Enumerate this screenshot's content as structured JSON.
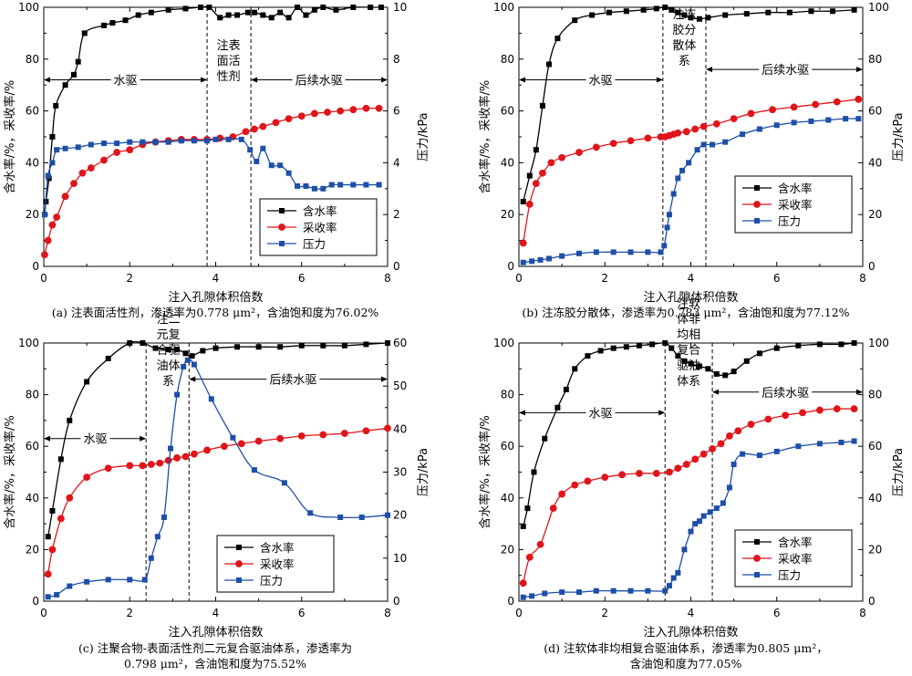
{
  "colors": {
    "water_cut": "#000000",
    "recovery": "#e0141a",
    "pressure": "#1d4fa8"
  },
  "chart_data": [
    {
      "type": "line",
      "panel": "a",
      "caption": [
        "(a) 注表面活性剂，渗透率为0.778 μm²，含油饱和度为76.02%"
      ],
      "xlabel": "注入孔隙体积倍数",
      "ylabel_left": "含水率/%，采收率/%",
      "ylabel_right": "压力/kPa",
      "xlim": [
        0,
        8
      ],
      "ylim_left": [
        0,
        100
      ],
      "ylim_right": [
        0,
        10
      ],
      "xticks": [
        "0",
        "2",
        "4",
        "6",
        "8"
      ],
      "yticks_left": [
        "0",
        "20",
        "40",
        "60",
        "80",
        "100"
      ],
      "yticks_right": [
        "0",
        "2",
        "4",
        "6",
        "8",
        "10"
      ],
      "legend": [
        "含水率",
        "采收率",
        "压力"
      ],
      "legend_position": "bottom-right",
      "phase_lines": [
        3.8,
        4.82
      ],
      "annotations": [
        {
          "text": [
            "水驱"
          ],
          "x": 1.9,
          "y": 72
        },
        {
          "text": [
            "注表",
            "面活",
            "性剂"
          ],
          "x": 4.3,
          "y": 76
        },
        {
          "text": [
            "后续水驱"
          ],
          "x": 6.4,
          "y": 72
        }
      ],
      "series": [
        {
          "name": "含水率",
          "axis": "left",
          "marker": "square",
          "x": [
            0.02,
            0.05,
            0.12,
            0.2,
            0.28,
            0.5,
            0.7,
            0.8,
            0.95,
            1.4,
            1.6,
            1.9,
            2.2,
            2.5,
            2.9,
            3.3,
            3.65,
            3.85,
            4.1,
            4.3,
            4.5,
            4.75,
            4.9,
            5.1,
            5.3,
            5.5,
            5.7,
            5.9,
            6.1,
            6.3,
            6.5,
            6.8,
            7.2,
            7.6,
            7.85
          ],
          "y": [
            20,
            25,
            34,
            50,
            62,
            70,
            74,
            79,
            90,
            93,
            94,
            95,
            97,
            98,
            99,
            99.5,
            100,
            100,
            96,
            97,
            97,
            98,
            98,
            97,
            96,
            98,
            96,
            100,
            97,
            99,
            100,
            99,
            100,
            100,
            100
          ]
        },
        {
          "name": "采收率",
          "axis": "left",
          "marker": "circle",
          "x": [
            0.02,
            0.1,
            0.2,
            0.3,
            0.5,
            0.7,
            0.9,
            1.1,
            1.4,
            1.7,
            2.0,
            2.3,
            2.6,
            2.9,
            3.2,
            3.5,
            3.8,
            4.1,
            4.4,
            4.7,
            4.9,
            5.1,
            5.4,
            5.7,
            6.0,
            6.3,
            6.6,
            6.9,
            7.2,
            7.5,
            7.8
          ],
          "y": [
            4.5,
            10,
            16,
            19,
            27,
            32,
            36,
            38,
            41,
            44,
            45,
            47,
            48,
            48.5,
            49,
            49,
            49,
            49.5,
            50,
            52,
            53,
            54,
            55.5,
            57,
            58,
            59,
            59.5,
            60,
            60.5,
            61,
            61
          ]
        },
        {
          "name": "压力",
          "axis": "right",
          "marker": "square",
          "x": [
            0.02,
            0.1,
            0.2,
            0.3,
            0.5,
            0.8,
            1.1,
            1.4,
            1.7,
            2.0,
            2.3,
            2.6,
            2.9,
            3.2,
            3.5,
            3.8,
            4.0,
            4.3,
            4.6,
            4.8,
            4.95,
            5.1,
            5.3,
            5.5,
            5.7,
            5.9,
            6.1,
            6.3,
            6.5,
            6.7,
            6.9,
            7.2,
            7.5,
            7.8
          ],
          "y": [
            2.0,
            3.5,
            4.0,
            4.5,
            4.55,
            4.6,
            4.7,
            4.75,
            4.75,
            4.8,
            4.8,
            4.8,
            4.8,
            4.85,
            4.85,
            4.85,
            4.9,
            4.9,
            4.9,
            4.5,
            4.05,
            4.55,
            3.9,
            3.9,
            3.6,
            3.1,
            3.1,
            3.0,
            3.0,
            3.15,
            3.15,
            3.15,
            3.15,
            3.15
          ]
        }
      ]
    },
    {
      "type": "line",
      "panel": "b",
      "caption": [
        "(b) 注冻胶分散体，渗透率为0.783 μm²，含油饱和度为77.12%"
      ],
      "xlabel": "注入孔隙体积倍数",
      "ylabel_left": "含水率/%，采收率/%",
      "ylabel_right": "压力/kPa",
      "xlim": [
        0,
        8
      ],
      "ylim_left": [
        0,
        100
      ],
      "ylim_right": [
        0,
        100
      ],
      "xticks": [
        "0",
        "2",
        "4",
        "6",
        "8"
      ],
      "yticks_left": [
        "0",
        "20",
        "40",
        "60",
        "80",
        "100"
      ],
      "yticks_right": [
        "0",
        "20",
        "40",
        "60",
        "80",
        "100"
      ],
      "legend": [
        "含水率",
        "采收率",
        "压力"
      ],
      "legend_position": "bottom-right",
      "phase_lines": [
        3.35,
        4.35
      ],
      "annotations": [
        {
          "text": [
            "水驱"
          ],
          "x": 1.9,
          "y": 72
        },
        {
          "text": [
            "注冻",
            "胶分",
            "散体",
            "系"
          ],
          "x": 3.85,
          "y": 82
        },
        {
          "text": [
            "后续水驱"
          ],
          "x": 6.2,
          "y": 76
        }
      ],
      "series": [
        {
          "name": "含水率",
          "axis": "left",
          "marker": "square",
          "x": [
            0.1,
            0.25,
            0.4,
            0.55,
            0.7,
            0.9,
            1.3,
            1.7,
            2.1,
            2.5,
            2.9,
            3.2,
            3.4,
            3.55,
            3.7,
            3.85,
            4.0,
            4.2,
            4.4,
            4.8,
            5.3,
            5.8,
            6.3,
            6.8,
            7.3,
            7.8
          ],
          "y": [
            25,
            35,
            45,
            62,
            78,
            88,
            95,
            97,
            98,
            98.5,
            99,
            99.5,
            100,
            99,
            98,
            97,
            96,
            95.5,
            96,
            97,
            97.5,
            98,
            98,
            98.5,
            98.5,
            99
          ]
        },
        {
          "name": "采收率",
          "axis": "left",
          "marker": "circle",
          "x": [
            0.1,
            0.25,
            0.4,
            0.55,
            0.75,
            1.0,
            1.4,
            1.8,
            2.2,
            2.6,
            3.0,
            3.3,
            3.4,
            3.5,
            3.6,
            3.7,
            3.9,
            4.1,
            4.3,
            4.6,
            5.0,
            5.4,
            5.9,
            6.4,
            6.9,
            7.4,
            7.9
          ],
          "y": [
            9,
            24,
            32,
            36,
            40,
            42,
            44,
            46,
            47.5,
            48.5,
            49.5,
            50,
            50,
            50.5,
            51,
            51.5,
            52,
            53,
            54,
            55,
            57,
            59,
            60.5,
            61.5,
            62.5,
            63.5,
            64.5
          ]
        },
        {
          "name": "压力",
          "axis": "right",
          "marker": "square",
          "x": [
            0.1,
            0.3,
            0.5,
            0.7,
            1.0,
            1.4,
            1.8,
            2.2,
            2.6,
            3.0,
            3.3,
            3.38,
            3.45,
            3.5,
            3.6,
            3.7,
            3.8,
            3.95,
            4.15,
            4.3,
            4.5,
            4.8,
            5.2,
            5.6,
            6.0,
            6.4,
            6.8,
            7.2,
            7.6,
            7.9
          ],
          "y": [
            1.5,
            2,
            2.5,
            3,
            4,
            5,
            5.5,
            5.5,
            5.5,
            5.5,
            5.5,
            8,
            15,
            20,
            28,
            34,
            37,
            40,
            45,
            47,
            47,
            48,
            51,
            53,
            54.5,
            55.5,
            56,
            56.5,
            57,
            57
          ]
        }
      ]
    },
    {
      "type": "line",
      "panel": "c",
      "caption": [
        "(c) 注聚合物-表面活性剂二元复合驱油体系，渗透率为",
        "0.798 μm²，含油饱和度为75.52%"
      ],
      "xlabel": "注入孔隙体积倍数",
      "ylabel_left": "含水率/%，采收率/%",
      "ylabel_right": "压力/kPa",
      "xlim": [
        0,
        8
      ],
      "ylim_left": [
        0,
        100
      ],
      "ylim_right": [
        0,
        60
      ],
      "xticks": [
        "0",
        "2",
        "4",
        "6",
        "8"
      ],
      "yticks_left": [
        "0",
        "20",
        "40",
        "60",
        "80",
        "100"
      ],
      "yticks_right": [
        "0",
        "10",
        "20",
        "30",
        "40",
        "50",
        "60"
      ],
      "legend": [
        "含水率",
        "采收率",
        "压力"
      ],
      "legend_position": "bottom-center",
      "phase_lines": [
        2.38,
        3.38
      ],
      "annotations": [
        {
          "text": [
            "水驱"
          ],
          "x": 1.2,
          "y": 63
        },
        {
          "text": [
            "注二",
            "元复",
            "合驱",
            "油体",
            "系"
          ],
          "x": 2.9,
          "y": 88
        },
        {
          "text": [
            "后续水驱"
          ],
          "x": 5.8,
          "y": 86
        }
      ],
      "series": [
        {
          "name": "含水率",
          "axis": "left",
          "marker": "square",
          "x": [
            0.1,
            0.2,
            0.4,
            0.6,
            1.0,
            1.5,
            2.0,
            2.3,
            2.6,
            2.9,
            3.1,
            3.3,
            3.45,
            3.7,
            4.0,
            4.5,
            5.0,
            5.5,
            6.0,
            6.5,
            7.0,
            7.5,
            8.0
          ],
          "y": [
            25,
            35,
            55,
            70,
            85,
            94,
            100,
            100,
            98,
            97.5,
            97.5,
            96,
            95,
            97,
            98,
            98.5,
            98.5,
            98.5,
            99,
            99,
            99,
            99.5,
            100
          ]
        },
        {
          "name": "采收率",
          "axis": "left",
          "marker": "circle",
          "x": [
            0.1,
            0.2,
            0.4,
            0.6,
            1.0,
            1.5,
            2.0,
            2.3,
            2.5,
            2.7,
            2.9,
            3.1,
            3.3,
            3.5,
            3.8,
            4.2,
            4.6,
            5.0,
            5.5,
            6.0,
            6.5,
            7.0,
            7.5,
            8.0
          ],
          "y": [
            10.5,
            20,
            32,
            40,
            48,
            51.5,
            52.5,
            52.5,
            53,
            53.5,
            54.5,
            55.5,
            56,
            57,
            58.5,
            60,
            61,
            62,
            63,
            64,
            64.5,
            65,
            66,
            67
          ]
        },
        {
          "name": "压力",
          "axis": "right",
          "marker": "square",
          "x": [
            0.1,
            0.3,
            0.6,
            1.0,
            1.5,
            2.0,
            2.35,
            2.5,
            2.65,
            2.8,
            2.95,
            3.1,
            3.25,
            3.35,
            3.5,
            3.9,
            4.4,
            4.9,
            5.6,
            6.2,
            6.9,
            7.4,
            8.0
          ],
          "y": [
            1,
            1.5,
            3.5,
            4.5,
            5,
            5,
            5,
            10,
            15,
            19.5,
            35.5,
            48,
            54.5,
            56,
            55,
            47,
            38,
            30.5,
            27.5,
            20.5,
            19.5,
            19.5,
            20
          ]
        }
      ]
    },
    {
      "type": "line",
      "panel": "d",
      "caption": [
        "(d) 注软体非均相复合驱油体系，渗透率为0.805 μm²，",
        "含油饱和度为77.05%"
      ],
      "xlabel": "注入孔隙体积倍数",
      "ylabel_left": "含水率/%，采收率/%",
      "ylabel_right": "压力/kPa",
      "xlim": [
        0,
        8
      ],
      "ylim_left": [
        0,
        100
      ],
      "ylim_right": [
        0,
        100
      ],
      "xticks": [
        "0",
        "2",
        "4",
        "6",
        "8"
      ],
      "yticks_left": [
        "0",
        "20",
        "40",
        "60",
        "80",
        "100"
      ],
      "yticks_right": [
        "0",
        "20",
        "40",
        "60",
        "80",
        "100"
      ],
      "legend": [
        "含水率",
        "采收率",
        "压力"
      ],
      "legend_position": "bottom-right",
      "phase_lines": [
        3.4,
        4.5
      ],
      "annotations": [
        {
          "text": [
            "水驱"
          ],
          "x": 1.9,
          "y": 73
        },
        {
          "text": [
            "注软",
            "体非",
            "均相",
            "复合",
            "驱油",
            "体系"
          ],
          "x": 3.95,
          "y": 88
        },
        {
          "text": [
            "后续水驱"
          ],
          "x": 6.2,
          "y": 81
        }
      ],
      "series": [
        {
          "name": "含水率",
          "axis": "left",
          "marker": "square",
          "x": [
            0.1,
            0.2,
            0.35,
            0.6,
            0.9,
            1.1,
            1.3,
            1.6,
            1.9,
            2.2,
            2.5,
            2.8,
            3.1,
            3.4,
            3.55,
            3.7,
            3.85,
            4.0,
            4.2,
            4.4,
            4.6,
            4.8,
            5.0,
            5.3,
            5.6,
            6.0,
            6.5,
            7.0,
            7.5,
            7.8
          ],
          "y": [
            29,
            36,
            50,
            63,
            75,
            82,
            90,
            95,
            97,
            98,
            98.5,
            99,
            99.5,
            100,
            98,
            95,
            93,
            92,
            91,
            90,
            88,
            87.5,
            89,
            93,
            96,
            98,
            99,
            99.5,
            99.5,
            100
          ]
        },
        {
          "name": "采收率",
          "axis": "left",
          "marker": "circle",
          "x": [
            0.1,
            0.25,
            0.5,
            0.8,
            1.0,
            1.3,
            1.6,
            2.0,
            2.4,
            2.8,
            3.2,
            3.5,
            3.7,
            3.9,
            4.1,
            4.3,
            4.5,
            4.7,
            4.9,
            5.1,
            5.4,
            5.8,
            6.2,
            6.6,
            7.0,
            7.4,
            7.8
          ],
          "y": [
            7,
            17,
            22,
            36,
            41.5,
            45,
            46.5,
            48,
            49,
            49.5,
            49.5,
            50,
            51.5,
            53,
            55,
            57,
            59,
            61,
            64,
            66,
            68.5,
            70.5,
            72,
            73,
            74,
            74.5,
            74.5
          ]
        },
        {
          "name": "压力",
          "axis": "right",
          "marker": "square",
          "x": [
            0.1,
            0.3,
            0.6,
            1.0,
            1.4,
            1.8,
            2.2,
            2.6,
            3.0,
            3.4,
            3.5,
            3.6,
            3.7,
            3.85,
            4.0,
            4.1,
            4.2,
            4.3,
            4.45,
            4.6,
            4.75,
            4.9,
            5.0,
            5.2,
            5.6,
            6.0,
            6.5,
            7.0,
            7.5,
            7.8
          ],
          "y": [
            1.5,
            2,
            3,
            3.5,
            3.5,
            4,
            4,
            4,
            4,
            4,
            6,
            9,
            11,
            20,
            27,
            30,
            31,
            33,
            34.5,
            36,
            38,
            44,
            53,
            57,
            56.5,
            58,
            60,
            61,
            61.5,
            62
          ]
        }
      ]
    }
  ]
}
